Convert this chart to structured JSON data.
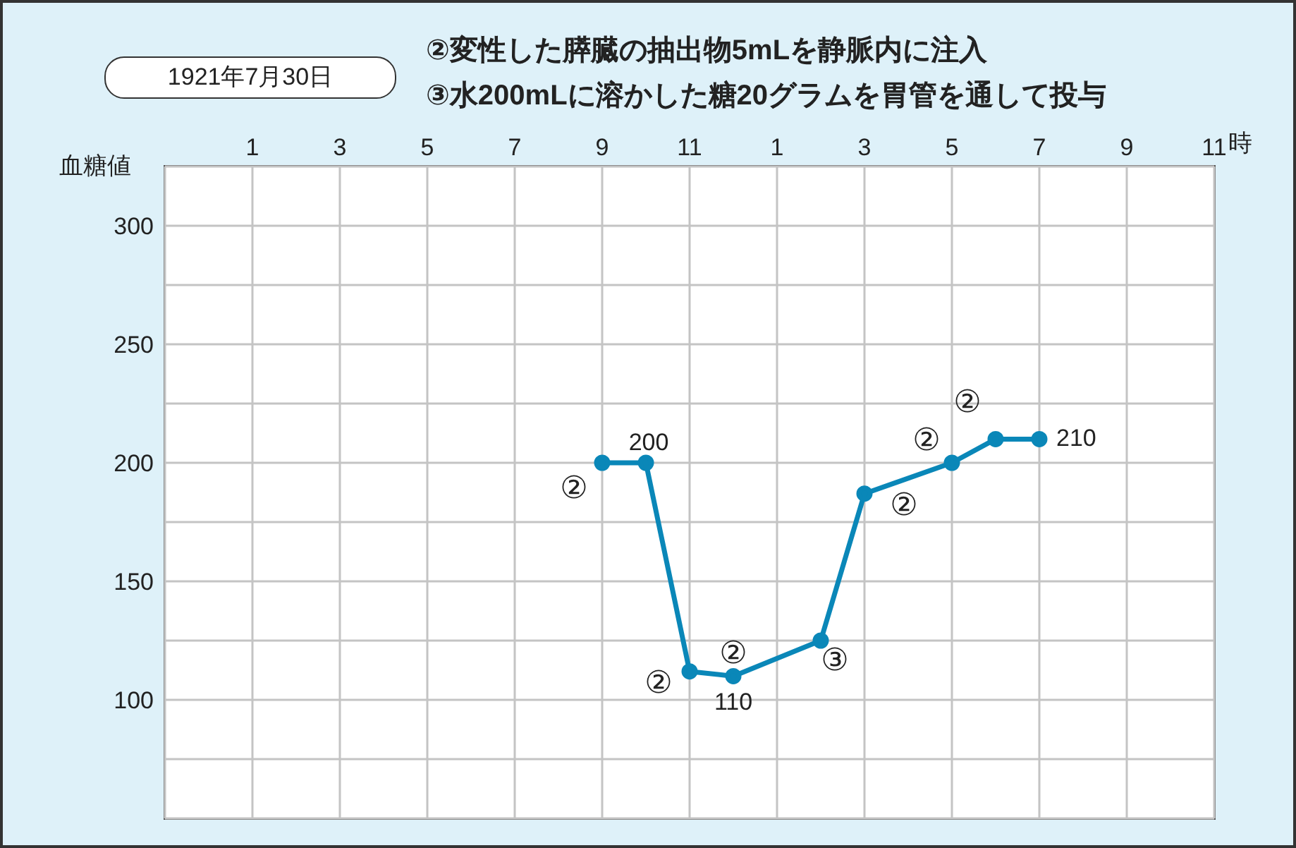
{
  "chart_data": {
    "type": "line",
    "title": "1921年7月30日",
    "ylabel": "血糖値",
    "xlabel": "時",
    "annotations": [
      "②変性した膵臓の抽出物5mLを静脈内に注入",
      "③水200mLに溶かした糖20グラムを胃管を通して投与",
      {
        "text": "②",
        "x": "1921-07-30T09:00",
        "y": 200
      },
      {
        "text": "②",
        "x": "1921-07-30T11:00",
        "y": 112
      },
      {
        "text": "②",
        "x": "1921-07-30T12:00",
        "y": 110
      },
      {
        "text": "③",
        "x": "1921-07-30T14:00",
        "y": 125
      },
      {
        "text": "②",
        "x": "1921-07-30T15:00",
        "y": 187
      },
      {
        "text": "②",
        "x": "1921-07-30T17:00",
        "y": 200
      },
      {
        "text": "②",
        "x": "1921-07-30T18:00",
        "y": 210
      }
    ],
    "x": [
      "1921-07-30T09:00",
      "1921-07-30T10:00",
      "1921-07-30T11:00",
      "1921-07-30T12:00",
      "1921-07-30T14:00",
      "1921-07-30T15:00",
      "1921-07-30T17:00",
      "1921-07-30T18:00",
      "1921-07-30T19:00"
    ],
    "series": [
      {
        "color": "#0a87b8",
        "values": [
          200,
          200,
          112,
          110,
          125,
          187,
          200,
          210,
          210
        ],
        "value_labels": [
          null,
          "200",
          null,
          "110",
          null,
          null,
          null,
          null,
          "210"
        ]
      }
    ],
    "xlim": [
      "1921-07-29T23:00",
      "1921-07-30T23:00"
    ],
    "xticks": [
      {
        "value": "1921-07-30T01:00",
        "label": "1"
      },
      {
        "value": "1921-07-30T03:00",
        "label": "3"
      },
      {
        "value": "1921-07-30T05:00",
        "label": "5"
      },
      {
        "value": "1921-07-30T07:00",
        "label": "7"
      },
      {
        "value": "1921-07-30T09:00",
        "label": "9"
      },
      {
        "value": "1921-07-30T11:00",
        "label": "11"
      },
      {
        "value": "1921-07-30T13:00",
        "label": "1"
      },
      {
        "value": "1921-07-30T15:00",
        "label": "3"
      },
      {
        "value": "1921-07-30T17:00",
        "label": "5"
      },
      {
        "value": "1921-07-30T19:00",
        "label": "7"
      },
      {
        "value": "1921-07-30T21:00",
        "label": "9"
      },
      {
        "value": "1921-07-30T23:00",
        "label": "11"
      }
    ],
    "ylim": [
      50,
      325
    ],
    "yticks": [
      {
        "value": 50,
        "label": null
      },
      {
        "value": 75,
        "label": null
      },
      100,
      {
        "value": 125,
        "label": null
      },
      150,
      {
        "value": 175,
        "label": null
      },
      200,
      {
        "value": 225,
        "label": null
      },
      250,
      {
        "value": 275,
        "label": null
      },
      300,
      {
        "value": 325,
        "label": null
      }
    ],
    "grid": true,
    "marker": "circle",
    "line_style": "solid",
    "legend": false
  }
}
